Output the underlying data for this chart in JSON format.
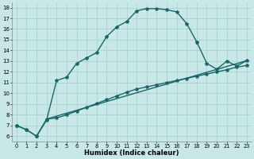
{
  "xlabel": "Humidex (Indice chaleur)",
  "xlim": [
    -0.5,
    23.5
  ],
  "ylim": [
    5.5,
    18.5
  ],
  "xticks": [
    0,
    1,
    2,
    3,
    4,
    5,
    6,
    7,
    8,
    9,
    10,
    11,
    12,
    13,
    14,
    15,
    16,
    17,
    18,
    19,
    20,
    21,
    22,
    23
  ],
  "yticks": [
    6,
    7,
    8,
    9,
    10,
    11,
    12,
    13,
    14,
    15,
    16,
    17,
    18
  ],
  "background_color": "#c8e8e8",
  "grid_color": "#a8cccc",
  "line_color": "#1a6666",
  "curve1_x": [
    0,
    1,
    2,
    3,
    4,
    5,
    6,
    7,
    8,
    9,
    10,
    11,
    12,
    13,
    14,
    15,
    16,
    17,
    18
  ],
  "curve1_y": [
    7.0,
    6.6,
    6.0,
    7.5,
    11.2,
    11.5,
    12.8,
    13.3,
    13.8,
    15.3,
    16.2,
    16.7,
    17.7,
    17.9,
    17.9,
    17.8,
    17.6,
    16.5,
    14.8
  ],
  "curve2_x": [
    2,
    3,
    4,
    5,
    6,
    7,
    8,
    9,
    10,
    11,
    12,
    13,
    14,
    15,
    16,
    17,
    18,
    19,
    20,
    21,
    22,
    23
  ],
  "curve2_y": [
    6.0,
    7.6,
    7.7,
    8.0,
    8.35,
    8.7,
    9.05,
    9.4,
    9.75,
    10.1,
    10.4,
    10.6,
    10.8,
    11.0,
    11.2,
    11.4,
    11.6,
    11.8,
    12.0,
    12.2,
    12.45,
    12.6
  ],
  "curve3_x": [
    2,
    3,
    18,
    19,
    20,
    21,
    22,
    23
  ],
  "curve3_y": [
    6.0,
    7.6,
    14.8,
    12.8,
    12.25,
    13.0,
    12.55,
    13.05
  ],
  "lw": 1.0,
  "ms": 3.0
}
